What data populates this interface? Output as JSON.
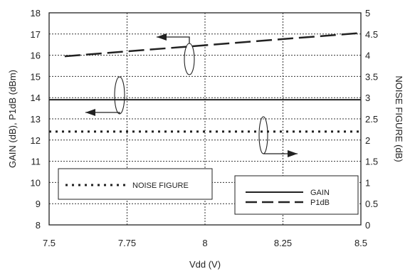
{
  "chart_data": {
    "type": "line",
    "xlabel": "Vdd (V)",
    "ylabel_left": "GAIN (dB), P1dB (dBm)",
    "ylabel_right": "NOISE FIGURE (dB)",
    "xlim": [
      7.5,
      8.5
    ],
    "ylim_left": [
      8,
      18
    ],
    "ylim_right": [
      0,
      5
    ],
    "x_ticks": [
      "7.5",
      "7.75",
      "8",
      "8.25",
      "8.5"
    ],
    "y_left_ticks": [
      "8",
      "9",
      "10",
      "11",
      "12",
      "13",
      "14",
      "15",
      "16",
      "17",
      "18"
    ],
    "y_right_ticks": [
      "0",
      "0.5",
      "1",
      "1.5",
      "2",
      "2.5",
      "3",
      "3.5",
      "4",
      "4.5",
      "5"
    ],
    "grid": true,
    "series": [
      {
        "name": "GAIN",
        "axis": "left",
        "style": "solid",
        "x": [
          7.5,
          8.5
        ],
        "values": [
          13.9,
          13.9
        ]
      },
      {
        "name": "P1dB",
        "axis": "left",
        "style": "long-dash",
        "x": [
          7.55,
          8.5
        ],
        "values": [
          15.95,
          17.05
        ]
      },
      {
        "name": "NOISE FIGURE",
        "axis": "right",
        "style": "dotted",
        "x": [
          7.5,
          8.5
        ],
        "values": [
          2.2,
          2.2
        ]
      }
    ],
    "legend": {
      "left_box": [
        "NOISE FIGURE"
      ],
      "right_box": [
        "GAIN",
        "P1dB"
      ],
      "placement": "bottom"
    }
  }
}
